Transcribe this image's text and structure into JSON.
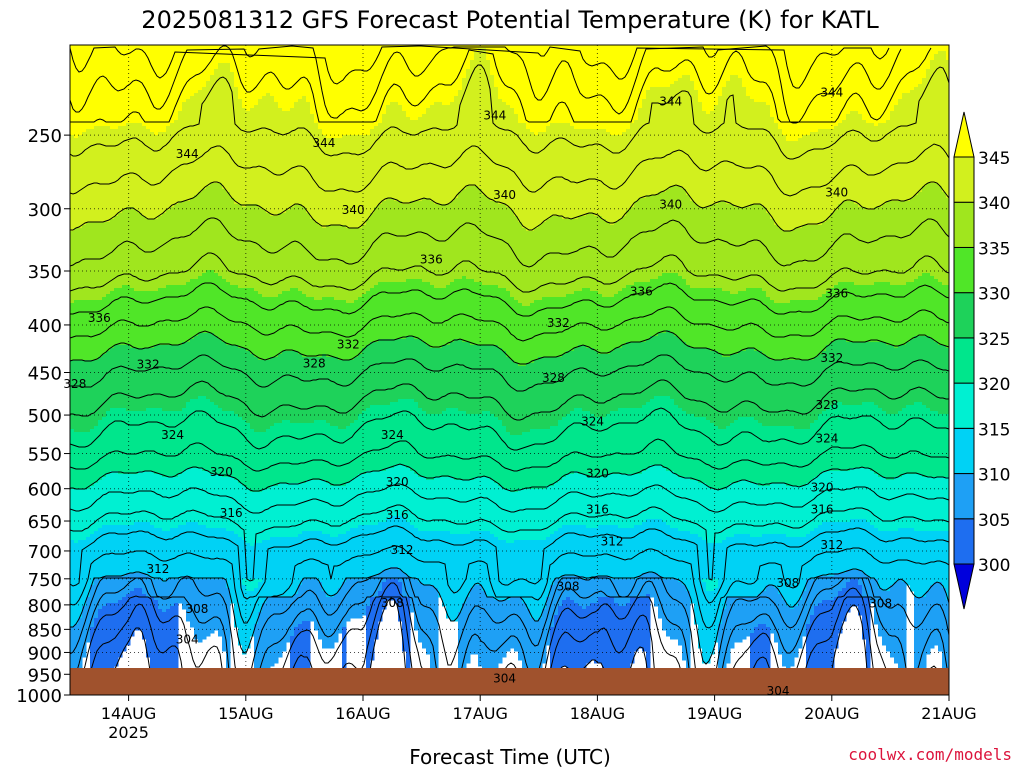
{
  "chart_data": {
    "type": "heatmap",
    "title": "2025081312 GFS Forecast Potential Temperature (K) for KATL",
    "xlabel": "Forecast Time (UTC)",
    "ylabel": "",
    "credit": "coolwx.com/models",
    "x_range": [
      "2025-08-13 12Z",
      "2025-08-21 00Z"
    ],
    "x_ticks": [
      {
        "label": "14AUG",
        "sub": "2025",
        "time": "2025-08-14 00Z"
      },
      {
        "label": "15AUG",
        "sub": "",
        "time": "2025-08-15 00Z"
      },
      {
        "label": "16AUG",
        "sub": "",
        "time": "2025-08-16 00Z"
      },
      {
        "label": "17AUG",
        "sub": "",
        "time": "2025-08-17 00Z"
      },
      {
        "label": "18AUG",
        "sub": "",
        "time": "2025-08-18 00Z"
      },
      {
        "label": "19AUG",
        "sub": "",
        "time": "2025-08-19 00Z"
      },
      {
        "label": "20AUG",
        "sub": "",
        "time": "2025-08-20 00Z"
      },
      {
        "label": "21AUG",
        "sub": "",
        "time": "2025-08-21 00Z"
      }
    ],
    "y_axis": {
      "scale": "log",
      "inverted": true,
      "range": [
        1000,
        200
      ],
      "ticks": [
        "250",
        "300",
        "350",
        "400",
        "450",
        "500",
        "550",
        "600",
        "650",
        "700",
        "750",
        "800",
        "850",
        "900",
        "950",
        "1000"
      ]
    },
    "grid": true,
    "colorbar": {
      "placement": "right",
      "levels": [
        300,
        305,
        310,
        315,
        320,
        325,
        330,
        335,
        340,
        345
      ],
      "labels": [
        "300",
        "305",
        "310",
        "315",
        "320",
        "325",
        "330",
        "335",
        "340",
        "345"
      ],
      "colors": [
        "#0a28ee",
        "#1e6ef0",
        "#1ea0f5",
        "#00d2f5",
        "#00f0d2",
        "#00e68c",
        "#1ed25a",
        "#50e628",
        "#a0e61e",
        "#d2f01e",
        "#ffff00"
      ],
      "under_color": "#0000dc",
      "over_color": "#ffff00"
    },
    "surface_color": "#a0522d",
    "profile": {
      "pressure": [
        1000,
        950,
        900,
        850,
        800,
        750,
        700,
        650,
        600,
        550,
        500,
        450,
        400,
        350,
        300,
        250,
        200
      ],
      "theta_mean": [
        302,
        303.5,
        304.5,
        306,
        308,
        310.5,
        313,
        316,
        319,
        322.5,
        325,
        328,
        332,
        336.5,
        340,
        344,
        349
      ]
    },
    "contour_labels": [
      {
        "text": "344",
        "time": "2025-08-14 12Z",
        "p": 262
      },
      {
        "text": "344",
        "time": "2025-08-15 16Z",
        "p": 255
      },
      {
        "text": "344",
        "time": "2025-08-17 03Z",
        "p": 238
      },
      {
        "text": "344",
        "time": "2025-08-18 15Z",
        "p": 230
      },
      {
        "text": "344",
        "time": "2025-08-20 00Z",
        "p": 225
      },
      {
        "text": "340",
        "time": "2025-08-15 22Z",
        "p": 301
      },
      {
        "text": "340",
        "time": "2025-08-17 05Z",
        "p": 290
      },
      {
        "text": "340",
        "time": "2025-08-18 15Z",
        "p": 297
      },
      {
        "text": "340",
        "time": "2025-08-20 01Z",
        "p": 288
      },
      {
        "text": "336",
        "time": "2025-08-13 18Z",
        "p": 393
      },
      {
        "text": "336",
        "time": "2025-08-16 14Z",
        "p": 340
      },
      {
        "text": "336",
        "time": "2025-08-18 09Z",
        "p": 368
      },
      {
        "text": "336",
        "time": "2025-08-20 01Z",
        "p": 370
      },
      {
        "text": "332",
        "time": "2025-08-14 04Z",
        "p": 441
      },
      {
        "text": "332",
        "time": "2025-08-15 21Z",
        "p": 420
      },
      {
        "text": "332",
        "time": "2025-08-17 16Z",
        "p": 398
      },
      {
        "text": "332",
        "time": "2025-08-20 00Z",
        "p": 434
      },
      {
        "text": "328",
        "time": "2025-08-13 13Z",
        "p": 463
      },
      {
        "text": "328",
        "time": "2025-08-15 14Z",
        "p": 440
      },
      {
        "text": "328",
        "time": "2025-08-17 15Z",
        "p": 456
      },
      {
        "text": "328",
        "time": "2025-08-19 23Z",
        "p": 488
      },
      {
        "text": "324",
        "time": "2025-08-14 09Z",
        "p": 525
      },
      {
        "text": "324",
        "time": "2025-08-16 06Z",
        "p": 525
      },
      {
        "text": "324",
        "time": "2025-08-17 23Z",
        "p": 508
      },
      {
        "text": "324",
        "time": "2025-08-19 23Z",
        "p": 530
      },
      {
        "text": "320",
        "time": "2025-08-14 19Z",
        "p": 576
      },
      {
        "text": "320",
        "time": "2025-08-16 07Z",
        "p": 590
      },
      {
        "text": "320",
        "time": "2025-08-18 00Z",
        "p": 578
      },
      {
        "text": "320",
        "time": "2025-08-19 22Z",
        "p": 598
      },
      {
        "text": "316",
        "time": "2025-08-14 21Z",
        "p": 637
      },
      {
        "text": "316",
        "time": "2025-08-16 07Z",
        "p": 640
      },
      {
        "text": "316",
        "time": "2025-08-18 00Z",
        "p": 632
      },
      {
        "text": "316",
        "time": "2025-08-19 22Z",
        "p": 632
      },
      {
        "text": "312",
        "time": "2025-08-14 06Z",
        "p": 732
      },
      {
        "text": "312",
        "time": "2025-08-16 08Z",
        "p": 698
      },
      {
        "text": "312",
        "time": "2025-08-18 03Z",
        "p": 684
      },
      {
        "text": "312",
        "time": "2025-08-20 00Z",
        "p": 690
      },
      {
        "text": "308",
        "time": "2025-08-14 14Z",
        "p": 808
      },
      {
        "text": "308",
        "time": "2025-08-16 06Z",
        "p": 796
      },
      {
        "text": "308",
        "time": "2025-08-17 18Z",
        "p": 764
      },
      {
        "text": "308",
        "time": "2025-08-19 15Z",
        "p": 758
      },
      {
        "text": "308",
        "time": "2025-08-20 10Z",
        "p": 797
      },
      {
        "text": "304",
        "time": "2025-08-14 12Z",
        "p": 872
      },
      {
        "text": "304",
        "time": "2025-08-17 05Z",
        "p": 960
      },
      {
        "text": "304",
        "time": "2025-08-19 13Z",
        "p": 990
      }
    ]
  }
}
